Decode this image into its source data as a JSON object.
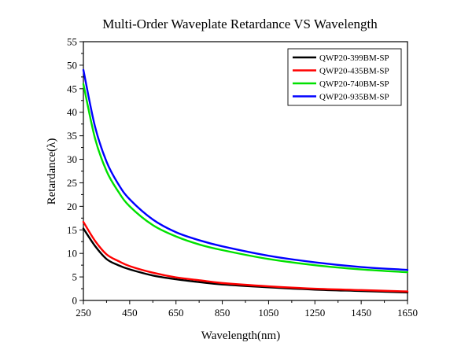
{
  "chart_data": {
    "type": "line",
    "title": "Multi-Order Waveplate Retardance VS Wavelength",
    "xlabel": "Wavelength(nm)",
    "ylabel": "Retardance(λ)",
    "xlim": [
      250,
      1650
    ],
    "ylim": [
      0,
      55
    ],
    "xticks": [
      250,
      450,
      650,
      850,
      1050,
      1250,
      1450,
      1650
    ],
    "yticks": [
      0,
      5,
      10,
      15,
      20,
      25,
      30,
      35,
      40,
      45,
      50,
      55
    ],
    "grid": false,
    "legend_position": "top-right",
    "colors": {
      "QWP20-399BM-SP": "#000000",
      "QWP20-435BM-SP": "#ff0000",
      "QWP20-740BM-SP": "#00e000",
      "QWP20-935BM-SP": "#0000ff"
    },
    "series": [
      {
        "name": "QWP20-399BM-SP",
        "color": "#000000",
        "x": [
          250,
          300,
          350,
          400,
          450,
          550,
          650,
          750,
          850,
          1050,
          1250,
          1450,
          1650
        ],
        "y": [
          15.3,
          11.6,
          8.8,
          7.5,
          6.6,
          5.3,
          4.5,
          3.9,
          3.4,
          2.8,
          2.3,
          2.0,
          1.7
        ]
      },
      {
        "name": "QWP20-435BM-SP",
        "color": "#ff0000",
        "x": [
          250,
          300,
          350,
          400,
          450,
          550,
          650,
          750,
          850,
          1050,
          1250,
          1450,
          1650
        ],
        "y": [
          16.7,
          12.7,
          9.8,
          8.4,
          7.3,
          5.9,
          4.9,
          4.3,
          3.7,
          3.0,
          2.5,
          2.2,
          1.9
        ]
      },
      {
        "name": "QWP20-740BM-SP",
        "color": "#00e000",
        "x": [
          250,
          300,
          350,
          400,
          450,
          550,
          650,
          750,
          850,
          1050,
          1250,
          1450,
          1650
        ],
        "y": [
          46.0,
          34.5,
          27.5,
          23.2,
          20.0,
          16.0,
          13.6,
          11.9,
          10.7,
          8.8,
          7.5,
          6.6,
          6.0
        ]
      },
      {
        "name": "QWP20-935BM-SP",
        "color": "#0000ff",
        "x": [
          250,
          300,
          350,
          400,
          450,
          550,
          650,
          750,
          850,
          1050,
          1250,
          1450,
          1650
        ],
        "y": [
          49.0,
          37.0,
          29.5,
          24.8,
          21.5,
          17.2,
          14.5,
          12.8,
          11.5,
          9.5,
          8.1,
          7.1,
          6.5
        ]
      }
    ]
  }
}
